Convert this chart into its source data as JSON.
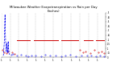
{
  "title": "Milwaukee Weather Evapotranspiration vs Rain per Day\n(Inches)",
  "title_fontsize": 2.8,
  "et_color": "#0000ee",
  "rain_color": "#cc0000",
  "background": "#ffffff",
  "ylim": [
    0,
    0.5
  ],
  "xlim": [
    1,
    365
  ],
  "ytick_pos": [
    0.0,
    0.05,
    0.1,
    0.15,
    0.2,
    0.25,
    0.3,
    0.35,
    0.4,
    0.45,
    0.5
  ],
  "ytick_labels": [
    "0",
    ".05",
    ".1",
    ".15",
    ".2",
    ".25",
    ".3",
    ".35",
    ".4",
    ".45",
    ".5"
  ],
  "vgrid_positions": [
    1,
    32,
    60,
    91,
    121,
    152,
    182,
    213,
    244,
    274,
    305,
    335,
    365
  ],
  "rain_line_y": 0.19,
  "rain_line_segs": [
    [
      55,
      100
    ],
    [
      115,
      200
    ],
    [
      210,
      270
    ],
    [
      290,
      320
    ],
    [
      330,
      360
    ]
  ],
  "et_spike": [
    [
      8,
      0.02
    ],
    [
      9,
      0.04
    ],
    [
      10,
      0.1
    ],
    [
      11,
      0.15
    ],
    [
      12,
      0.22
    ],
    [
      13,
      0.38
    ],
    [
      14,
      0.48
    ],
    [
      15,
      0.3
    ],
    [
      16,
      0.18
    ],
    [
      17,
      0.12
    ],
    [
      18,
      0.08
    ],
    [
      19,
      0.06
    ],
    [
      20,
      0.16
    ],
    [
      21,
      0.13
    ],
    [
      22,
      0.1
    ],
    [
      23,
      0.08
    ],
    [
      24,
      0.05
    ],
    [
      25,
      0.18
    ],
    [
      26,
      0.12
    ],
    [
      27,
      0.08
    ],
    [
      28,
      0.05
    ],
    [
      29,
      0.03
    ]
  ],
  "et_scatter": [
    [
      35,
      0.03
    ],
    [
      42,
      0.04
    ],
    [
      55,
      0.02
    ],
    [
      70,
      0.03
    ],
    [
      85,
      0.02
    ],
    [
      95,
      0.015
    ],
    [
      105,
      0.025
    ],
    [
      120,
      0.02
    ],
    [
      140,
      0.015
    ],
    [
      155,
      0.03
    ],
    [
      170,
      0.02
    ],
    [
      190,
      0.025
    ],
    [
      210,
      0.015
    ],
    [
      225,
      0.02
    ],
    [
      240,
      0.03
    ],
    [
      260,
      0.015
    ],
    [
      280,
      0.02
    ],
    [
      300,
      0.025
    ],
    [
      315,
      0.02
    ],
    [
      330,
      0.015
    ],
    [
      345,
      0.02
    ],
    [
      358,
      0.015
    ]
  ],
  "rain_scatter": [
    [
      5,
      0.08
    ],
    [
      10,
      0.06
    ],
    [
      18,
      0.05
    ],
    [
      25,
      0.07
    ],
    [
      38,
      0.06
    ],
    [
      48,
      0.04
    ],
    [
      275,
      0.08
    ],
    [
      285,
      0.06
    ],
    [
      295,
      0.07
    ],
    [
      310,
      0.05
    ],
    [
      325,
      0.08
    ],
    [
      340,
      0.06
    ],
    [
      350,
      0.07
    ],
    [
      360,
      0.05
    ]
  ],
  "et_dot_color": "#0000ee",
  "rain_dot_color": "#cc0000"
}
